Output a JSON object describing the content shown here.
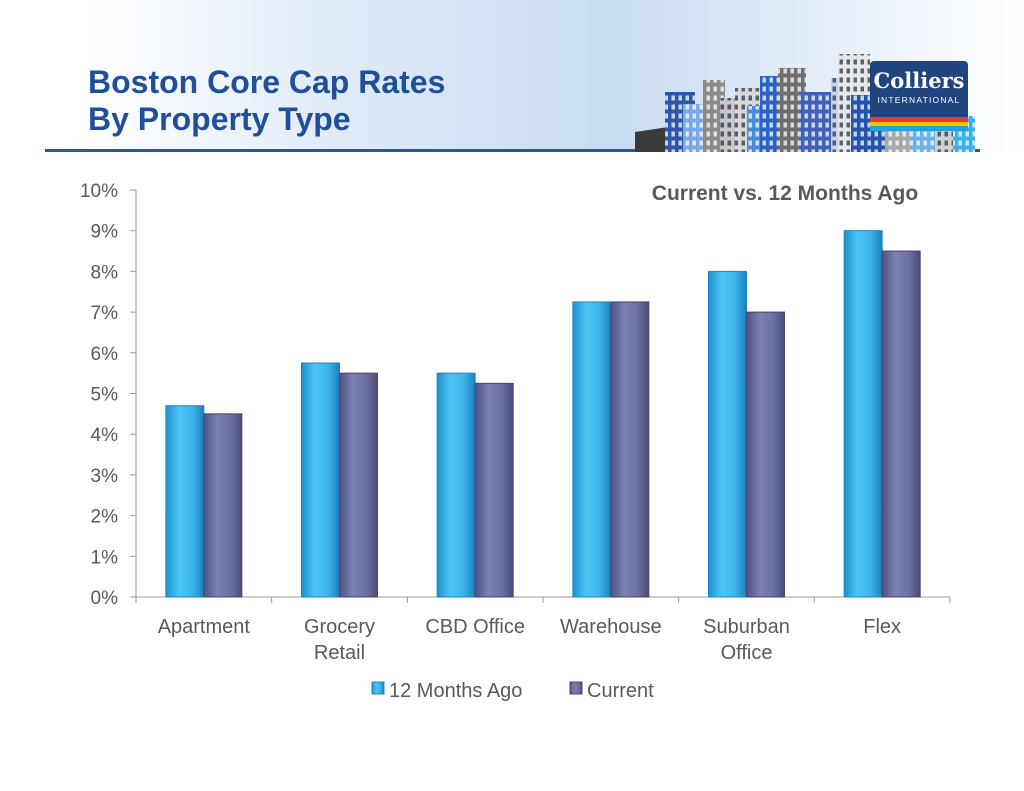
{
  "header": {
    "title_line1": "Boston Core Cap Rates",
    "title_line2": "By Property Type",
    "logo_brand": "Colliers",
    "logo_sub": "INTERNATIONAL"
  },
  "colors": {
    "title": "#1f4f9b",
    "series_prev": "#3fbaf0",
    "series_curr": "#6c6fa0",
    "logo_bg": "#20447d"
  },
  "chart_data": {
    "type": "bar",
    "subtitle": "Current vs. 12 Months Ago",
    "categories": [
      [
        "Apartment"
      ],
      [
        "Grocery",
        "Retail"
      ],
      [
        "CBD Office"
      ],
      [
        "Warehouse"
      ],
      [
        "Suburban",
        "Office"
      ],
      [
        "Flex"
      ]
    ],
    "series": [
      {
        "name": "12 Months Ago",
        "values": [
          4.7,
          5.75,
          5.5,
          7.25,
          8.0,
          9.0
        ]
      },
      {
        "name": "Current",
        "values": [
          4.5,
          5.5,
          5.25,
          7.25,
          7.0,
          8.5
        ]
      }
    ],
    "ylim": [
      0,
      10
    ],
    "yticks": [
      "0%",
      "1%",
      "2%",
      "3%",
      "4%",
      "5%",
      "6%",
      "7%",
      "8%",
      "9%",
      "10%"
    ],
    "legend": "bottom",
    "grid": false
  }
}
